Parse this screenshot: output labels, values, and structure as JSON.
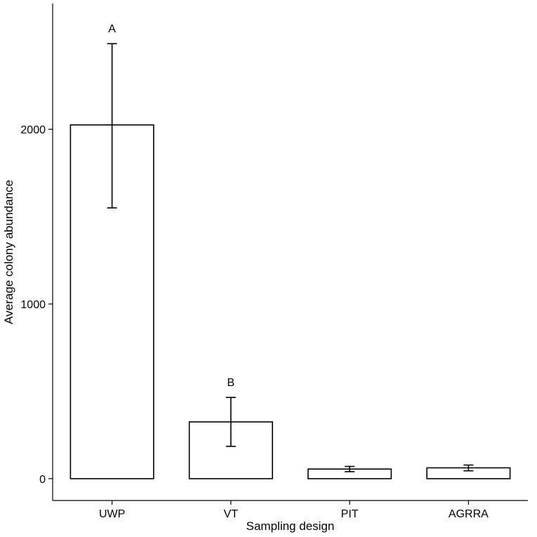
{
  "chart_data": {
    "type": "bar",
    "categories": [
      "UWP",
      "VT",
      "PIT",
      "AGRRA"
    ],
    "values": [
      2025,
      325,
      55,
      62
    ],
    "error_low": [
      1550,
      185,
      40,
      45
    ],
    "error_high": [
      2490,
      465,
      70,
      78
    ],
    "significance_labels": [
      "A",
      "B",
      "",
      ""
    ],
    "title": "",
    "xlabel": "Sampling design",
    "ylabel": "Average colony abundance",
    "ylim": [
      -125,
      2720
    ],
    "yticks": [
      0,
      1000,
      2000
    ],
    "ytick_labels": [
      "0",
      "1000",
      "2000"
    ],
    "grid": false,
    "legend": "none"
  }
}
